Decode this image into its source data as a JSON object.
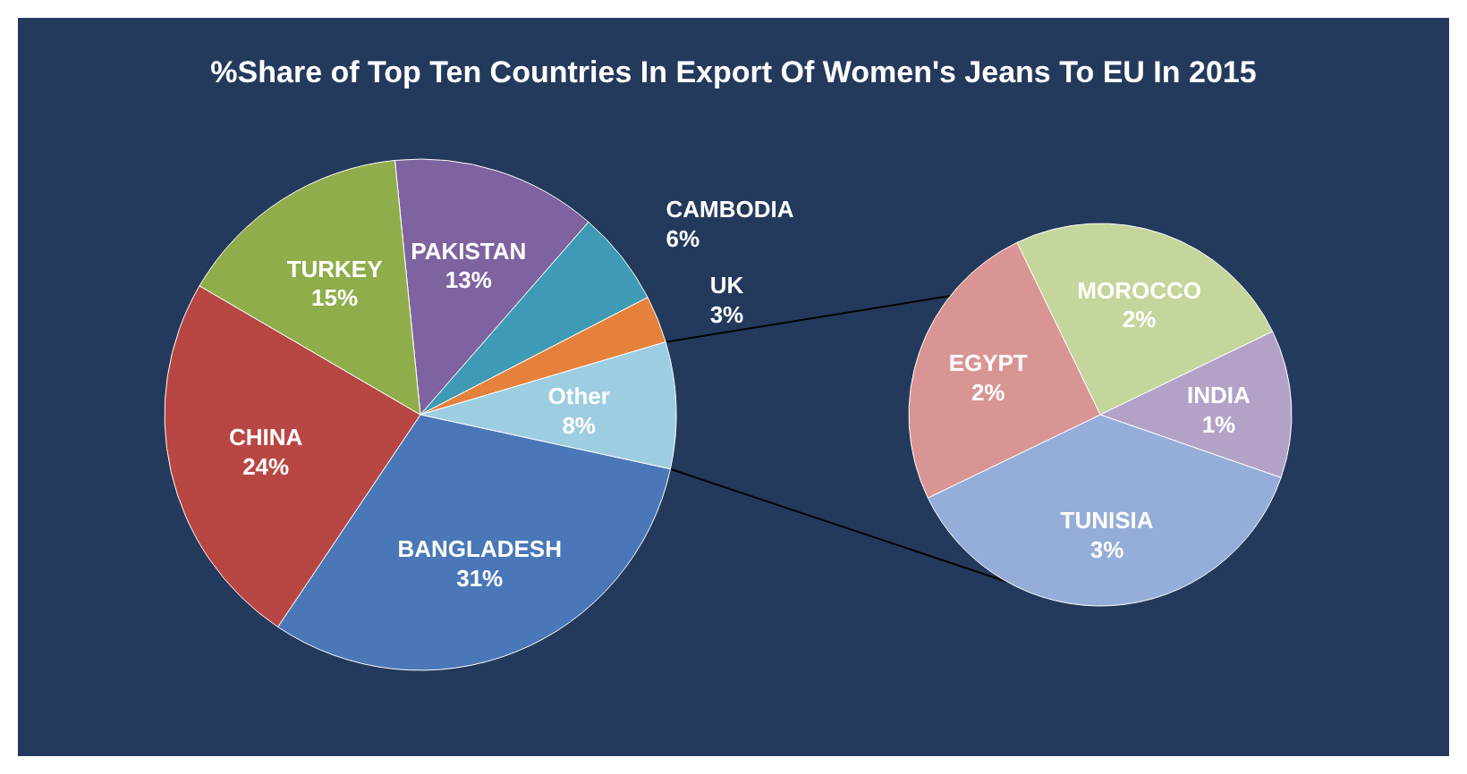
{
  "chart_data": [
    {
      "type": "pie",
      "title": "%Share of Top Ten Countries In Export Of Women's Jeans To EU In 2015",
      "categories": [
        "PAKISTAN",
        "CAMBODIA",
        "UK",
        "Other",
        "BANGLADESH",
        "CHINA",
        "TURKEY"
      ],
      "values": [
        13,
        6,
        3,
        8,
        31,
        24,
        15
      ],
      "colors": [
        "#7f62a0",
        "#3f9bb5",
        "#e5813a",
        "#9dcde0",
        "#4a77b8",
        "#b84643",
        "#8fad4a"
      ],
      "value_labels": [
        "13%",
        "6%",
        "3%",
        "8%",
        "31%",
        "24%",
        "15%"
      ]
    },
    {
      "type": "pie",
      "categories": [
        "MOROCCO",
        "INDIA",
        "TUNISIA",
        "EGYPT"
      ],
      "values": [
        2,
        1,
        3,
        2
      ],
      "colors": [
        "#c4d69b",
        "#b3a2c8",
        "#94add9",
        "#d99594"
      ],
      "value_labels": [
        "2%",
        "1%",
        "3%",
        "2%"
      ]
    }
  ]
}
